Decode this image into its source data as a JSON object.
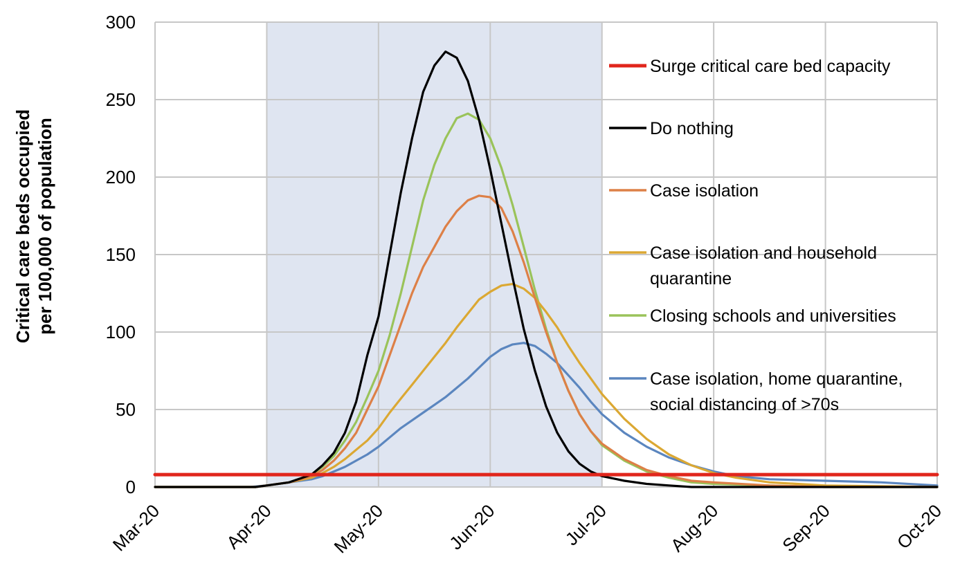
{
  "chart_data": {
    "type": "line",
    "title": "",
    "xlabel": "",
    "ylabel": [
      "Critical care beds occupied",
      "per 100,000 of population"
    ],
    "ylim": [
      0,
      300
    ],
    "y_ticks": [
      0,
      50,
      100,
      150,
      200,
      250,
      300
    ],
    "x_ticks": [
      "Mar-20",
      "Apr-20",
      "May-20",
      "Jun-20",
      "Jul-20",
      "Aug-20",
      "Sep-20",
      "Oct-20"
    ],
    "grid": true,
    "legend_position": "right",
    "shaded_region": {
      "from": "Apr-20",
      "to": "Jul-20",
      "color": "#dfe5f1"
    },
    "x_unit": "month index (0 = Mar-20, 7 = Oct-20)",
    "series": [
      {
        "name": "Surge critical care bed capacity",
        "color": "#e1261c",
        "legend_lines": [
          "Surge critical care bed capacity"
        ],
        "points": [
          [
            0,
            8
          ],
          [
            7,
            8
          ]
        ]
      },
      {
        "name": "Do nothing",
        "color": "#000000",
        "legend_lines": [
          "Do nothing"
        ],
        "points": [
          [
            0,
            0
          ],
          [
            0.9,
            0
          ],
          [
            1.0,
            1
          ],
          [
            1.2,
            3
          ],
          [
            1.4,
            8
          ],
          [
            1.5,
            14
          ],
          [
            1.6,
            22
          ],
          [
            1.7,
            35
          ],
          [
            1.8,
            55
          ],
          [
            1.9,
            85
          ],
          [
            2.0,
            110
          ],
          [
            2.1,
            150
          ],
          [
            2.2,
            190
          ],
          [
            2.3,
            225
          ],
          [
            2.4,
            255
          ],
          [
            2.5,
            272
          ],
          [
            2.6,
            281
          ],
          [
            2.7,
            277
          ],
          [
            2.8,
            262
          ],
          [
            2.9,
            237
          ],
          [
            3.0,
            205
          ],
          [
            3.1,
            170
          ],
          [
            3.2,
            135
          ],
          [
            3.3,
            102
          ],
          [
            3.4,
            75
          ],
          [
            3.5,
            52
          ],
          [
            3.6,
            35
          ],
          [
            3.7,
            23
          ],
          [
            3.8,
            15
          ],
          [
            3.9,
            10
          ],
          [
            4.0,
            7
          ],
          [
            4.2,
            4
          ],
          [
            4.4,
            2
          ],
          [
            4.6,
            1
          ],
          [
            4.8,
            0
          ],
          [
            7.0,
            0
          ]
        ]
      },
      {
        "name": "Case isolation",
        "color": "#dd8047",
        "legend_lines": [
          "Case isolation"
        ],
        "points": [
          [
            0,
            0
          ],
          [
            0.9,
            0
          ],
          [
            1.0,
            1
          ],
          [
            1.2,
            3
          ],
          [
            1.4,
            7
          ],
          [
            1.5,
            11
          ],
          [
            1.6,
            17
          ],
          [
            1.7,
            25
          ],
          [
            1.8,
            35
          ],
          [
            1.9,
            50
          ],
          [
            2.0,
            65
          ],
          [
            2.1,
            85
          ],
          [
            2.2,
            105
          ],
          [
            2.3,
            125
          ],
          [
            2.4,
            142
          ],
          [
            2.5,
            155
          ],
          [
            2.6,
            168
          ],
          [
            2.7,
            178
          ],
          [
            2.8,
            185
          ],
          [
            2.9,
            188
          ],
          [
            3.0,
            187
          ],
          [
            3.1,
            180
          ],
          [
            3.2,
            165
          ],
          [
            3.3,
            145
          ],
          [
            3.4,
            122
          ],
          [
            3.5,
            100
          ],
          [
            3.6,
            80
          ],
          [
            3.7,
            62
          ],
          [
            3.8,
            47
          ],
          [
            3.9,
            36
          ],
          [
            4.0,
            28
          ],
          [
            4.2,
            18
          ],
          [
            4.4,
            11
          ],
          [
            4.6,
            7
          ],
          [
            4.8,
            4
          ],
          [
            5.0,
            3
          ],
          [
            5.5,
            1
          ],
          [
            6.0,
            0
          ],
          [
            7.0,
            0
          ]
        ]
      },
      {
        "name": "Case isolation and household quarantine",
        "color": "#dba833",
        "legend_lines": [
          "Case isolation and household",
          "quarantine"
        ],
        "points": [
          [
            0,
            0
          ],
          [
            0.9,
            0
          ],
          [
            1.0,
            1
          ],
          [
            1.2,
            3
          ],
          [
            1.4,
            6
          ],
          [
            1.5,
            9
          ],
          [
            1.6,
            13
          ],
          [
            1.7,
            18
          ],
          [
            1.8,
            24
          ],
          [
            1.9,
            30
          ],
          [
            2.0,
            38
          ],
          [
            2.1,
            48
          ],
          [
            2.2,
            57
          ],
          [
            2.3,
            66
          ],
          [
            2.4,
            75
          ],
          [
            2.5,
            84
          ],
          [
            2.6,
            93
          ],
          [
            2.7,
            103
          ],
          [
            2.8,
            112
          ],
          [
            2.9,
            121
          ],
          [
            3.0,
            126
          ],
          [
            3.1,
            130
          ],
          [
            3.2,
            131
          ],
          [
            3.3,
            128
          ],
          [
            3.4,
            122
          ],
          [
            3.5,
            113
          ],
          [
            3.6,
            103
          ],
          [
            3.7,
            91
          ],
          [
            3.8,
            80
          ],
          [
            3.9,
            70
          ],
          [
            4.0,
            60
          ],
          [
            4.2,
            44
          ],
          [
            4.4,
            31
          ],
          [
            4.6,
            21
          ],
          [
            4.8,
            14
          ],
          [
            5.0,
            9
          ],
          [
            5.2,
            6
          ],
          [
            5.5,
            3
          ],
          [
            6.0,
            1
          ],
          [
            7.0,
            0
          ]
        ]
      },
      {
        "name": "Closing schools and universities",
        "color": "#9ac35a",
        "legend_lines": [
          "Closing schools and universities"
        ],
        "points": [
          [
            0,
            0
          ],
          [
            0.9,
            0
          ],
          [
            1.0,
            1
          ],
          [
            1.2,
            3
          ],
          [
            1.4,
            8
          ],
          [
            1.5,
            13
          ],
          [
            1.6,
            20
          ],
          [
            1.7,
            30
          ],
          [
            1.8,
            42
          ],
          [
            1.9,
            58
          ],
          [
            2.0,
            75
          ],
          [
            2.1,
            98
          ],
          [
            2.2,
            125
          ],
          [
            2.3,
            155
          ],
          [
            2.4,
            185
          ],
          [
            2.5,
            208
          ],
          [
            2.6,
            225
          ],
          [
            2.7,
            238
          ],
          [
            2.8,
            241
          ],
          [
            2.9,
            237
          ],
          [
            3.0,
            225
          ],
          [
            3.1,
            206
          ],
          [
            3.2,
            182
          ],
          [
            3.3,
            155
          ],
          [
            3.4,
            127
          ],
          [
            3.5,
            102
          ],
          [
            3.6,
            80
          ],
          [
            3.7,
            62
          ],
          [
            3.8,
            47
          ],
          [
            3.9,
            36
          ],
          [
            4.0,
            27
          ],
          [
            4.2,
            17
          ],
          [
            4.4,
            10
          ],
          [
            4.6,
            6
          ],
          [
            4.8,
            3
          ],
          [
            5.0,
            2
          ],
          [
            5.5,
            1
          ],
          [
            6.0,
            0
          ],
          [
            7.0,
            0
          ]
        ]
      },
      {
        "name": "Case isolation, home quarantine, social distancing of >70s",
        "color": "#5b86bf",
        "legend_lines": [
          "Case isolation, home quarantine,",
          "social distancing of >70s"
        ],
        "points": [
          [
            0,
            0
          ],
          [
            0.85,
            0
          ],
          [
            1.0,
            1
          ],
          [
            1.2,
            3
          ],
          [
            1.4,
            5
          ],
          [
            1.5,
            7
          ],
          [
            1.6,
            10
          ],
          [
            1.7,
            13
          ],
          [
            1.8,
            17
          ],
          [
            1.9,
            21
          ],
          [
            2.0,
            26
          ],
          [
            2.1,
            32
          ],
          [
            2.2,
            38
          ],
          [
            2.3,
            43
          ],
          [
            2.4,
            48
          ],
          [
            2.5,
            53
          ],
          [
            2.6,
            58
          ],
          [
            2.7,
            64
          ],
          [
            2.8,
            70
          ],
          [
            2.9,
            77
          ],
          [
            3.0,
            84
          ],
          [
            3.1,
            89
          ],
          [
            3.2,
            92
          ],
          [
            3.3,
            93
          ],
          [
            3.4,
            91
          ],
          [
            3.5,
            86
          ],
          [
            3.6,
            80
          ],
          [
            3.7,
            72
          ],
          [
            3.8,
            64
          ],
          [
            3.9,
            55
          ],
          [
            4.0,
            47
          ],
          [
            4.2,
            35
          ],
          [
            4.4,
            26
          ],
          [
            4.6,
            19
          ],
          [
            4.8,
            14
          ],
          [
            5.0,
            10
          ],
          [
            5.2,
            7
          ],
          [
            5.5,
            5
          ],
          [
            6.0,
            4
          ],
          [
            6.5,
            3
          ],
          [
            7.0,
            1
          ]
        ]
      }
    ]
  }
}
